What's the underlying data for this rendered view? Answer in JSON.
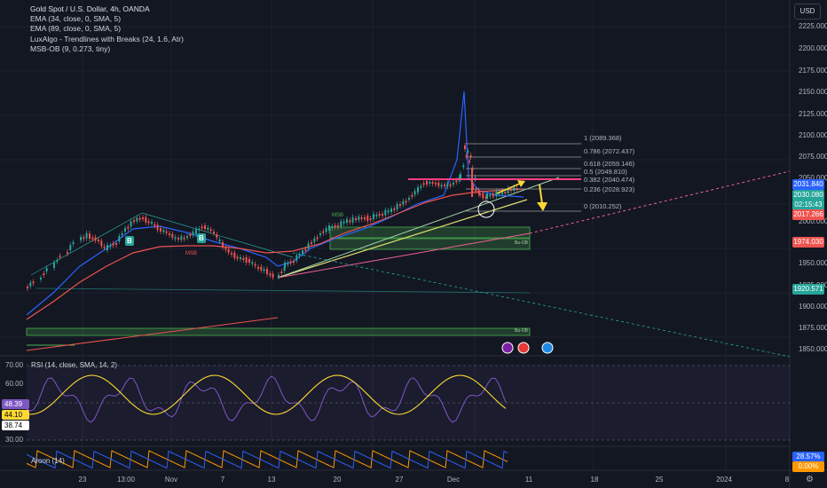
{
  "chart": {
    "title": "Gold Spot / U.S. Dollar, 4h, OANDA",
    "indicators": [
      "EMA (34, close, 0, SMA, 5)",
      "EMA (89, close, 0, SMA, 5)",
      "LuxAlgo - Trendlines with Breaks (24, 1.6, Atr)",
      "MSB-OB (9, 0.273, tiny)"
    ],
    "currency": "USD"
  },
  "price_axis": [
    "2225.000",
    "2200.000",
    "2175.000",
    "2150.000",
    "2125.000",
    "2100.000",
    "2075.000",
    "2050.000",
    "2000.000",
    "1950.000",
    "1925.000",
    "1900.000",
    "1875.000",
    "1850.000"
  ],
  "price_badges": {
    "b1": "2031.840",
    "b2": "2030.080",
    "b3": "02:15:43",
    "b4": "2017.266",
    "b5": "1974.030",
    "b6": "1920.571"
  },
  "fib_levels": [
    "1 (2089.368)",
    "0.786 (2072.437)",
    "0.618 (2059.146)",
    "0.5 (2049.810)",
    "0.382 (2040.474)",
    "0.236 (2028.923)",
    "0 (2010.252)"
  ],
  "chart_labels": {
    "msb1": "MSB",
    "msb2": "MSB",
    "ob": "Bu-OB"
  },
  "rsi": {
    "label": "RSI (14, close, SMA, 14, 2)",
    "axis": [
      "70.00",
      "60.00",
      "30.00"
    ],
    "badges": {
      "v1": "48.39",
      "v2": "44.10",
      "v3": "38.74"
    }
  },
  "aroon": {
    "label": "Aroon (14)",
    "badges": {
      "v1": "28.57%",
      "v2": "0.00%"
    }
  },
  "time_axis": [
    "23",
    "13:00",
    "Nov",
    "7",
    "13",
    "20",
    "27",
    "Dec",
    "11",
    "18",
    "25",
    "2024",
    "8"
  ],
  "colors": {
    "bg": "#131722",
    "up": "#26a69a",
    "down": "#ef5350",
    "rsi": "#7e57c2",
    "aroon_up": "#ff9800",
    "aroon_down": "#2962ff"
  }
}
